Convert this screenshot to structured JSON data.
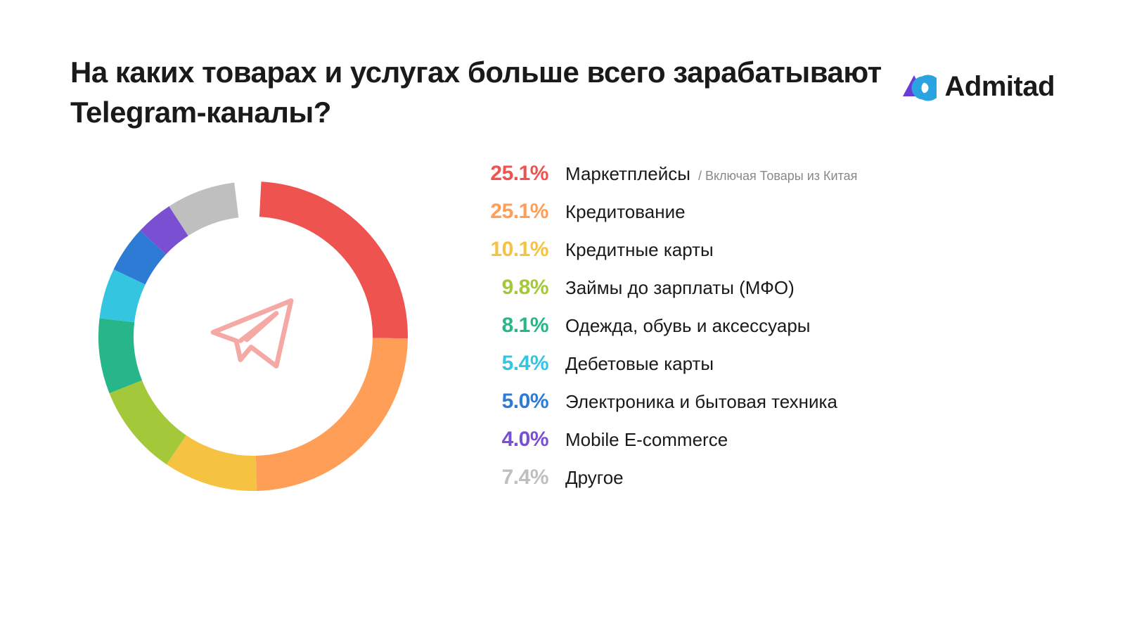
{
  "title": "На каких товарах и услугах больше всего зарабатывают Telegram-каналы?",
  "logo_text": "Admitad",
  "logo_colors": {
    "outer": "#6a3bd6",
    "inner": "#2aa3e0"
  },
  "background_color": "#ffffff",
  "title_color": "#1a1a1a",
  "label_color": "#1a1a1a",
  "note_color": "#888888",
  "telegram_icon_stroke": "#f5a9a5",
  "chart": {
    "type": "donut",
    "outer_radius": 220,
    "inner_radius": 170,
    "gap_degrees": 10,
    "start_angle_deg": -90,
    "segments": [
      {
        "value": 25.1,
        "color": "#ef5350",
        "label": "Маркетплейсы",
        "note": "/  Включая Товары из Китая",
        "display_pct": "25.1%"
      },
      {
        "value": 25.1,
        "color": "#ff9e57",
        "label": "Кредитование",
        "note": "",
        "display_pct": "25.1%"
      },
      {
        "value": 10.1,
        "color": "#f5c242",
        "label": "Кредитные карты",
        "note": "",
        "display_pct": "10.1%"
      },
      {
        "value": 9.8,
        "color": "#a3c93a",
        "label": "Займы до зарплаты (МФО)",
        "note": "",
        "display_pct": "9.8%"
      },
      {
        "value": 8.1,
        "color": "#27b58a",
        "label": "Одежда, обувь и аксессуары",
        "note": "",
        "display_pct": "8.1%"
      },
      {
        "value": 5.4,
        "color": "#34c6e0",
        "label": "Дебетовые карты",
        "note": "",
        "display_pct": "5.4%"
      },
      {
        "value": 5.0,
        "color": "#2e7bd6",
        "label": "Электроника и бытовая техника",
        "note": "",
        "display_pct": "5.0%"
      },
      {
        "value": 4.0,
        "color": "#7a4fd1",
        "label": "Mobile E-commerce",
        "note": "",
        "display_pct": "4.0%"
      },
      {
        "value": 7.4,
        "color": "#bfbfbf",
        "label": "Другое",
        "note": "",
        "display_pct": "7.4%"
      }
    ],
    "center_icon": "telegram"
  },
  "typography": {
    "title_fontsize": 42,
    "title_weight": 700,
    "pct_fontsize": 30,
    "pct_weight": 700,
    "label_fontsize": 26,
    "label_weight": 400,
    "note_fontsize": 18,
    "logo_fontsize": 40
  }
}
